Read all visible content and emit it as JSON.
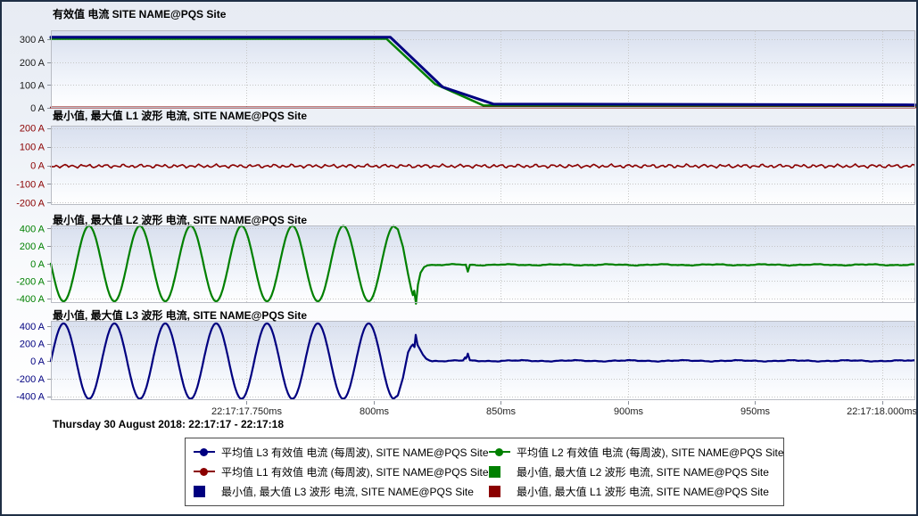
{
  "colors": {
    "navy": "#000080",
    "green": "#008000",
    "dark_red": "#8b0000",
    "axis_text": "#1a1a1a",
    "x_label": "#222222",
    "grid": "#c6c6c6",
    "tick": "#8a909a",
    "plot_border": "#b9bcc4",
    "plot_bg_top": "#d8dfee",
    "plot_bg_mid": "#f4f7fc",
    "plot_bg_bottom": "#ffffff"
  },
  "chart_data": [
    {
      "type": "line",
      "title": "有效值 电流 SITE NAME@PQS Site",
      "y_unit": "A",
      "y_ticks": [
        300,
        200,
        100,
        0
      ],
      "ylim": [
        0,
        340
      ],
      "axis_color": "axis_text",
      "series": [
        {
          "name": "平均值 L2 有效值 电流 (每周波), SITE NAME@PQS Site",
          "color": "green",
          "width": 2.5,
          "kind": "breakpoints",
          "points": [
            [
              673,
              303
            ],
            [
              805,
              303
            ],
            [
              824,
              105
            ],
            [
              843,
              11
            ],
            [
              1013,
              8
            ]
          ]
        },
        {
          "name": "平均值 L3 有效值 电流 (每周波), SITE NAME@PQS Site",
          "color": "navy",
          "width": 3,
          "kind": "breakpoints",
          "points": [
            [
              673,
              310
            ],
            [
              806.5,
              310
            ],
            [
              827,
              92
            ],
            [
              847,
              17
            ],
            [
              1013,
              13
            ]
          ]
        },
        {
          "name": "平均值 L1 有效值 电流 (每周波), SITE NAME@PQS Site",
          "color": "dark_red",
          "width": 2,
          "kind": "breakpoints",
          "points": [
            [
              673,
              2
            ],
            [
              1013,
              2
            ]
          ]
        }
      ]
    },
    {
      "type": "line",
      "title": "最小值, 最大值 L1 波形 电流, SITE NAME@PQS Site",
      "y_unit": "A",
      "y_ticks": [
        200,
        100,
        0,
        -100,
        -200
      ],
      "ylim": [
        -212,
        212
      ],
      "axis_color": "dark_red",
      "series": [
        {
          "name": "最小值, 最大值 L1 波形 电流, SITE NAME@PQS Site",
          "color": "dark_red",
          "width": 1.6,
          "kind": "noise_line",
          "t0": 673,
          "t1": 1013,
          "base": -4,
          "noise": {
            "a": [
              6,
              3.5,
              2.2
            ],
            "f": [
              1.9,
              0.85,
              3.4
            ],
            "ph": [
              0.7,
              2.3,
              4.9
            ]
          }
        }
      ]
    },
    {
      "type": "line",
      "title": "最小值, 最大值 L2 波形 电流, SITE NAME@PQS Site",
      "y_unit": "A",
      "y_ticks": [
        400,
        200,
        0,
        -200,
        -400
      ],
      "ylim": [
        -450,
        435
      ],
      "axis_color": "green",
      "series": [
        {
          "name": "最小值, 最大值 L2 波形 电流, SITE NAME@PQS Site",
          "color": "green",
          "width": 2.2,
          "kind": "sine_event",
          "t0": 673,
          "period_ms": 20,
          "amplitude": 430,
          "dir": -1,
          "sine_end": 808,
          "post": [
            [
              809.5,
              390
            ],
            [
              811.5,
              190
            ],
            [
              813.5,
              -120
            ],
            [
              814.8,
              -300
            ],
            [
              815.4,
              -360
            ],
            [
              815.9,
              -310
            ],
            [
              816.6,
              -458
            ],
            [
              817.4,
              -240
            ],
            [
              818.4,
              -105
            ],
            [
              819.8,
              -40
            ],
            [
              821.2,
              -20
            ]
          ],
          "noise_t0": 822,
          "noise_t1": 1013,
          "noise_base": -14,
          "noise": {
            "a": [
              5,
              3,
              1.8
            ],
            "f": [
              0.31,
              0.83,
              2.3
            ],
            "ph": [
              1.2,
              3.1,
              0.4
            ]
          },
          "spikes": [
            [
              837,
              -92
            ]
          ]
        }
      ]
    },
    {
      "type": "line",
      "title": "最小值, 最大值 L3 波形 电流, SITE NAME@PQS Site",
      "y_unit": "A",
      "y_ticks": [
        400,
        200,
        0,
        -200,
        -400
      ],
      "ylim": [
        -445,
        460
      ],
      "axis_color": "navy",
      "series": [
        {
          "name": "最小值, 最大值 L3 波形 电流, SITE NAME@PQS Site",
          "color": "navy",
          "width": 2.2,
          "kind": "sine_event",
          "t0": 673,
          "period_ms": 20,
          "amplitude": 430,
          "dir": 1,
          "sine_end": 808,
          "post": [
            [
              809.5,
              -390
            ],
            [
              811.5,
              -190
            ],
            [
              813.5,
              100
            ],
            [
              814.6,
              165
            ],
            [
              815.4,
              190
            ],
            [
              816,
              160
            ],
            [
              816.5,
              300
            ],
            [
              817.2,
              185
            ],
            [
              818.1,
              140
            ],
            [
              819.3,
              75
            ],
            [
              820.6,
              28
            ],
            [
              822,
              6
            ]
          ],
          "noise_t0": 823,
          "noise_t1": 1013,
          "noise_base": 4,
          "noise": {
            "a": [
              5,
              3,
              1.8
            ],
            "f": [
              0.29,
              0.9,
              2.4
            ],
            "ph": [
              4.4,
              1.1,
              2.7
            ]
          },
          "spikes": [
            [
              835.9,
              42
            ],
            [
              837,
              86
            ]
          ]
        }
      ]
    }
  ],
  "x_axis": {
    "xlim": [
      673,
      1013
    ],
    "unit": "ms",
    "ticks": [
      {
        "t": 750,
        "label": "22:17:17.750ms"
      },
      {
        "t": 800,
        "label": "800ms"
      },
      {
        "t": 850,
        "label": "850ms"
      },
      {
        "t": 900,
        "label": "900ms"
      },
      {
        "t": 950,
        "label": "950ms"
      },
      {
        "t": 1000,
        "label": "22:17:18.000ms"
      }
    ]
  },
  "footer": {
    "range_title": "Thursday 30 August 2018: 22:17:17 - 22:17:18"
  },
  "legend": {
    "columns": [
      {
        "items": [
          {
            "marker": "line-dot",
            "color": "navy",
            "label": "平均值 L3 有效值 电流 (每周波), SITE NAME@PQS Site"
          },
          {
            "marker": "line-dot",
            "color": "dark_red",
            "label": "平均值 L1 有效值 电流 (每周波), SITE NAME@PQS Site"
          },
          {
            "marker": "square",
            "color": "navy",
            "label": "最小值, 最大值 L3 波形 电流, SITE NAME@PQS Site"
          }
        ]
      },
      {
        "items": [
          {
            "marker": "line-dot",
            "color": "green",
            "label": "平均值 L2 有效值 电流 (每周波), SITE NAME@PQS Site"
          },
          {
            "marker": "square",
            "color": "green",
            "label": "最小值, 最大值 L2 波形 电流, SITE NAME@PQS Site"
          },
          {
            "marker": "square",
            "color": "dark_red",
            "label": "最小值, 最大值 L1 波形 电流, SITE NAME@PQS Site"
          }
        ]
      }
    ]
  }
}
